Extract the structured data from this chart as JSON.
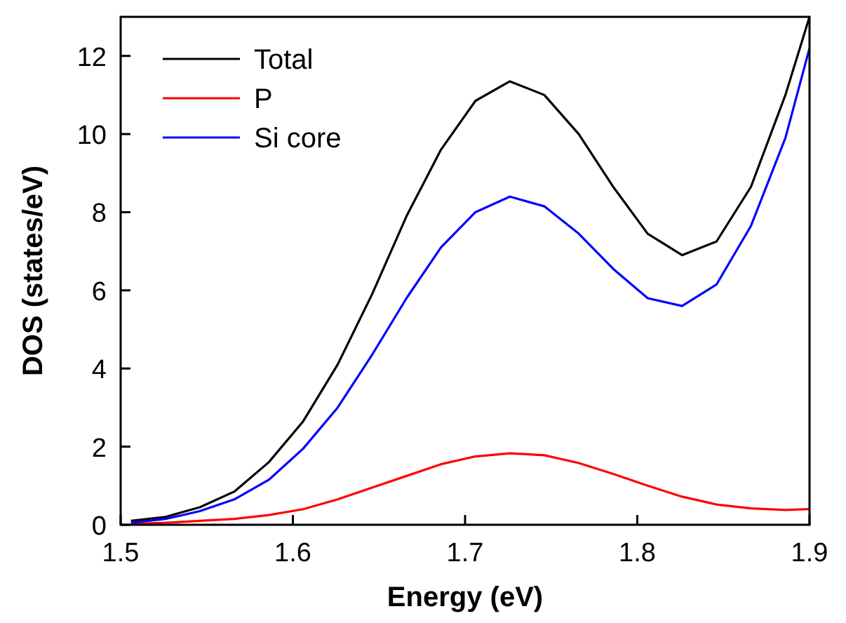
{
  "chart_data": {
    "type": "line",
    "xlabel": "Energy (eV)",
    "ylabel": "DOS (states/eV)",
    "x": [
      1.506,
      1.526,
      1.546,
      1.566,
      1.586,
      1.606,
      1.626,
      1.646,
      1.666,
      1.686,
      1.706,
      1.726,
      1.746,
      1.766,
      1.786,
      1.806,
      1.826,
      1.846,
      1.866,
      1.886,
      1.9
    ],
    "series": [
      {
        "name": "Total",
        "color": "#000000",
        "values": [
          0.1,
          0.2,
          0.45,
          0.85,
          1.6,
          2.65,
          4.1,
          5.9,
          7.9,
          9.6,
          10.85,
          11.35,
          11.0,
          10.0,
          8.65,
          7.45,
          6.9,
          7.25,
          8.65,
          11.0,
          13.0
        ]
      },
      {
        "name": "P",
        "color": "#ff0000",
        "values": [
          0.02,
          0.05,
          0.1,
          0.15,
          0.25,
          0.4,
          0.65,
          0.95,
          1.25,
          1.55,
          1.75,
          1.83,
          1.78,
          1.58,
          1.3,
          1.0,
          0.72,
          0.52,
          0.42,
          0.38,
          0.4
        ]
      },
      {
        "name": "Si core",
        "color": "#0000ff",
        "values": [
          0.05,
          0.15,
          0.35,
          0.65,
          1.15,
          1.95,
          3.0,
          4.35,
          5.8,
          7.1,
          8.0,
          8.4,
          8.15,
          7.45,
          6.55,
          5.8,
          5.6,
          6.15,
          7.65,
          9.9,
          12.2
        ]
      }
    ],
    "xlim": [
      1.5,
      1.9
    ],
    "xticks": [
      {
        "value": 1.5,
        "label": "1.5"
      },
      {
        "value": 1.6,
        "label": "1.6"
      },
      {
        "value": 1.7,
        "label": "1.7"
      },
      {
        "value": 1.8,
        "label": "1.8"
      },
      {
        "value": 1.9,
        "label": "1.9"
      }
    ],
    "ylim": [
      0,
      13
    ],
    "yticks": [
      0,
      2,
      4,
      6,
      8,
      10,
      12
    ],
    "legend": "top left",
    "grid": false,
    "marker": "none",
    "line_style": "solid"
  }
}
